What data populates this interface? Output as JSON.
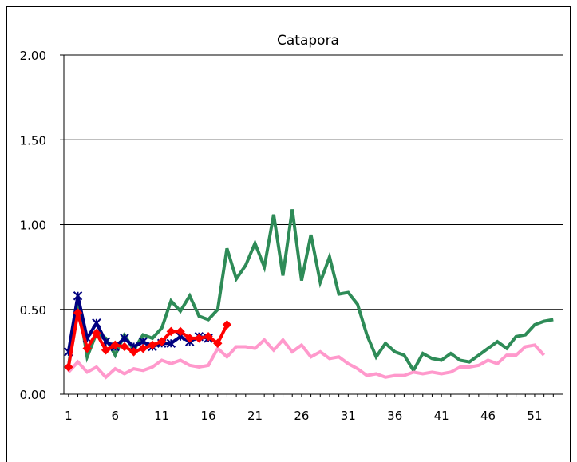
{
  "chart_data": {
    "type": "line",
    "title": "Catapora",
    "xlabel": "",
    "ylabel": "",
    "xlim": [
      1,
      53
    ],
    "ylim": [
      0,
      2
    ],
    "grid": true,
    "legend": "none",
    "x_tick_labels": [
      "1",
      "6",
      "11",
      "16",
      "21",
      "26",
      "31",
      "36",
      "41",
      "46",
      "51"
    ],
    "y_tick_labels": [
      "0.00",
      "0.50",
      "1.00",
      "1.50",
      "2.00"
    ],
    "y_ticks": [
      0,
      0.5,
      1,
      1.5,
      2
    ],
    "x_ticks": [
      1,
      6,
      11,
      16,
      21,
      26,
      31,
      36,
      41,
      46,
      51
    ],
    "series": [
      {
        "color": "#2e8b57",
        "marker": "none",
        "values": [
          0.16,
          0.56,
          0.22,
          0.36,
          0.33,
          0.23,
          0.35,
          0.26,
          0.35,
          0.33,
          0.39,
          0.55,
          0.49,
          0.58,
          0.46,
          0.44,
          0.5,
          0.86,
          0.68,
          0.76,
          0.89,
          0.75,
          1.06,
          0.7,
          1.09,
          0.67,
          0.94,
          0.66,
          0.81,
          0.59,
          0.6,
          0.53,
          0.35,
          0.22,
          0.3,
          0.25,
          0.23,
          0.14,
          0.24,
          0.21,
          0.2,
          0.24,
          0.2,
          0.19,
          0.23,
          0.27,
          0.31,
          0.27,
          0.34,
          0.35,
          0.41,
          0.43,
          0.44
        ]
      },
      {
        "color": "#ff99cc",
        "marker": "none",
        "values": [
          0.13,
          0.19,
          0.13,
          0.16,
          0.1,
          0.15,
          0.12,
          0.15,
          0.14,
          0.16,
          0.2,
          0.18,
          0.2,
          0.17,
          0.16,
          0.17,
          0.27,
          0.22,
          0.28,
          0.28,
          0.27,
          0.32,
          0.26,
          0.32,
          0.25,
          0.29,
          0.22,
          0.25,
          0.21,
          0.22,
          0.18,
          0.15,
          0.11,
          0.12,
          0.1,
          0.11,
          0.11,
          0.13,
          0.12,
          0.13,
          0.12,
          0.13,
          0.16,
          0.16,
          0.17,
          0.2,
          0.18,
          0.23,
          0.23,
          0.28,
          0.29,
          0.23
        ]
      },
      {
        "color": "#000080",
        "marker": "x",
        "values": [
          0.25,
          0.58,
          0.33,
          0.42,
          0.31,
          0.28,
          0.33,
          0.28,
          0.31,
          0.28,
          0.3,
          0.3,
          0.34,
          0.31,
          0.34,
          0.33
        ]
      },
      {
        "color": "#ff0000",
        "marker": "diamond",
        "values": [
          0.16,
          0.48,
          0.27,
          0.36,
          0.26,
          0.29,
          0.28,
          0.25,
          0.27,
          0.29,
          0.31,
          0.37,
          0.37,
          0.33,
          0.33,
          0.34,
          0.3,
          0.41
        ]
      }
    ]
  }
}
